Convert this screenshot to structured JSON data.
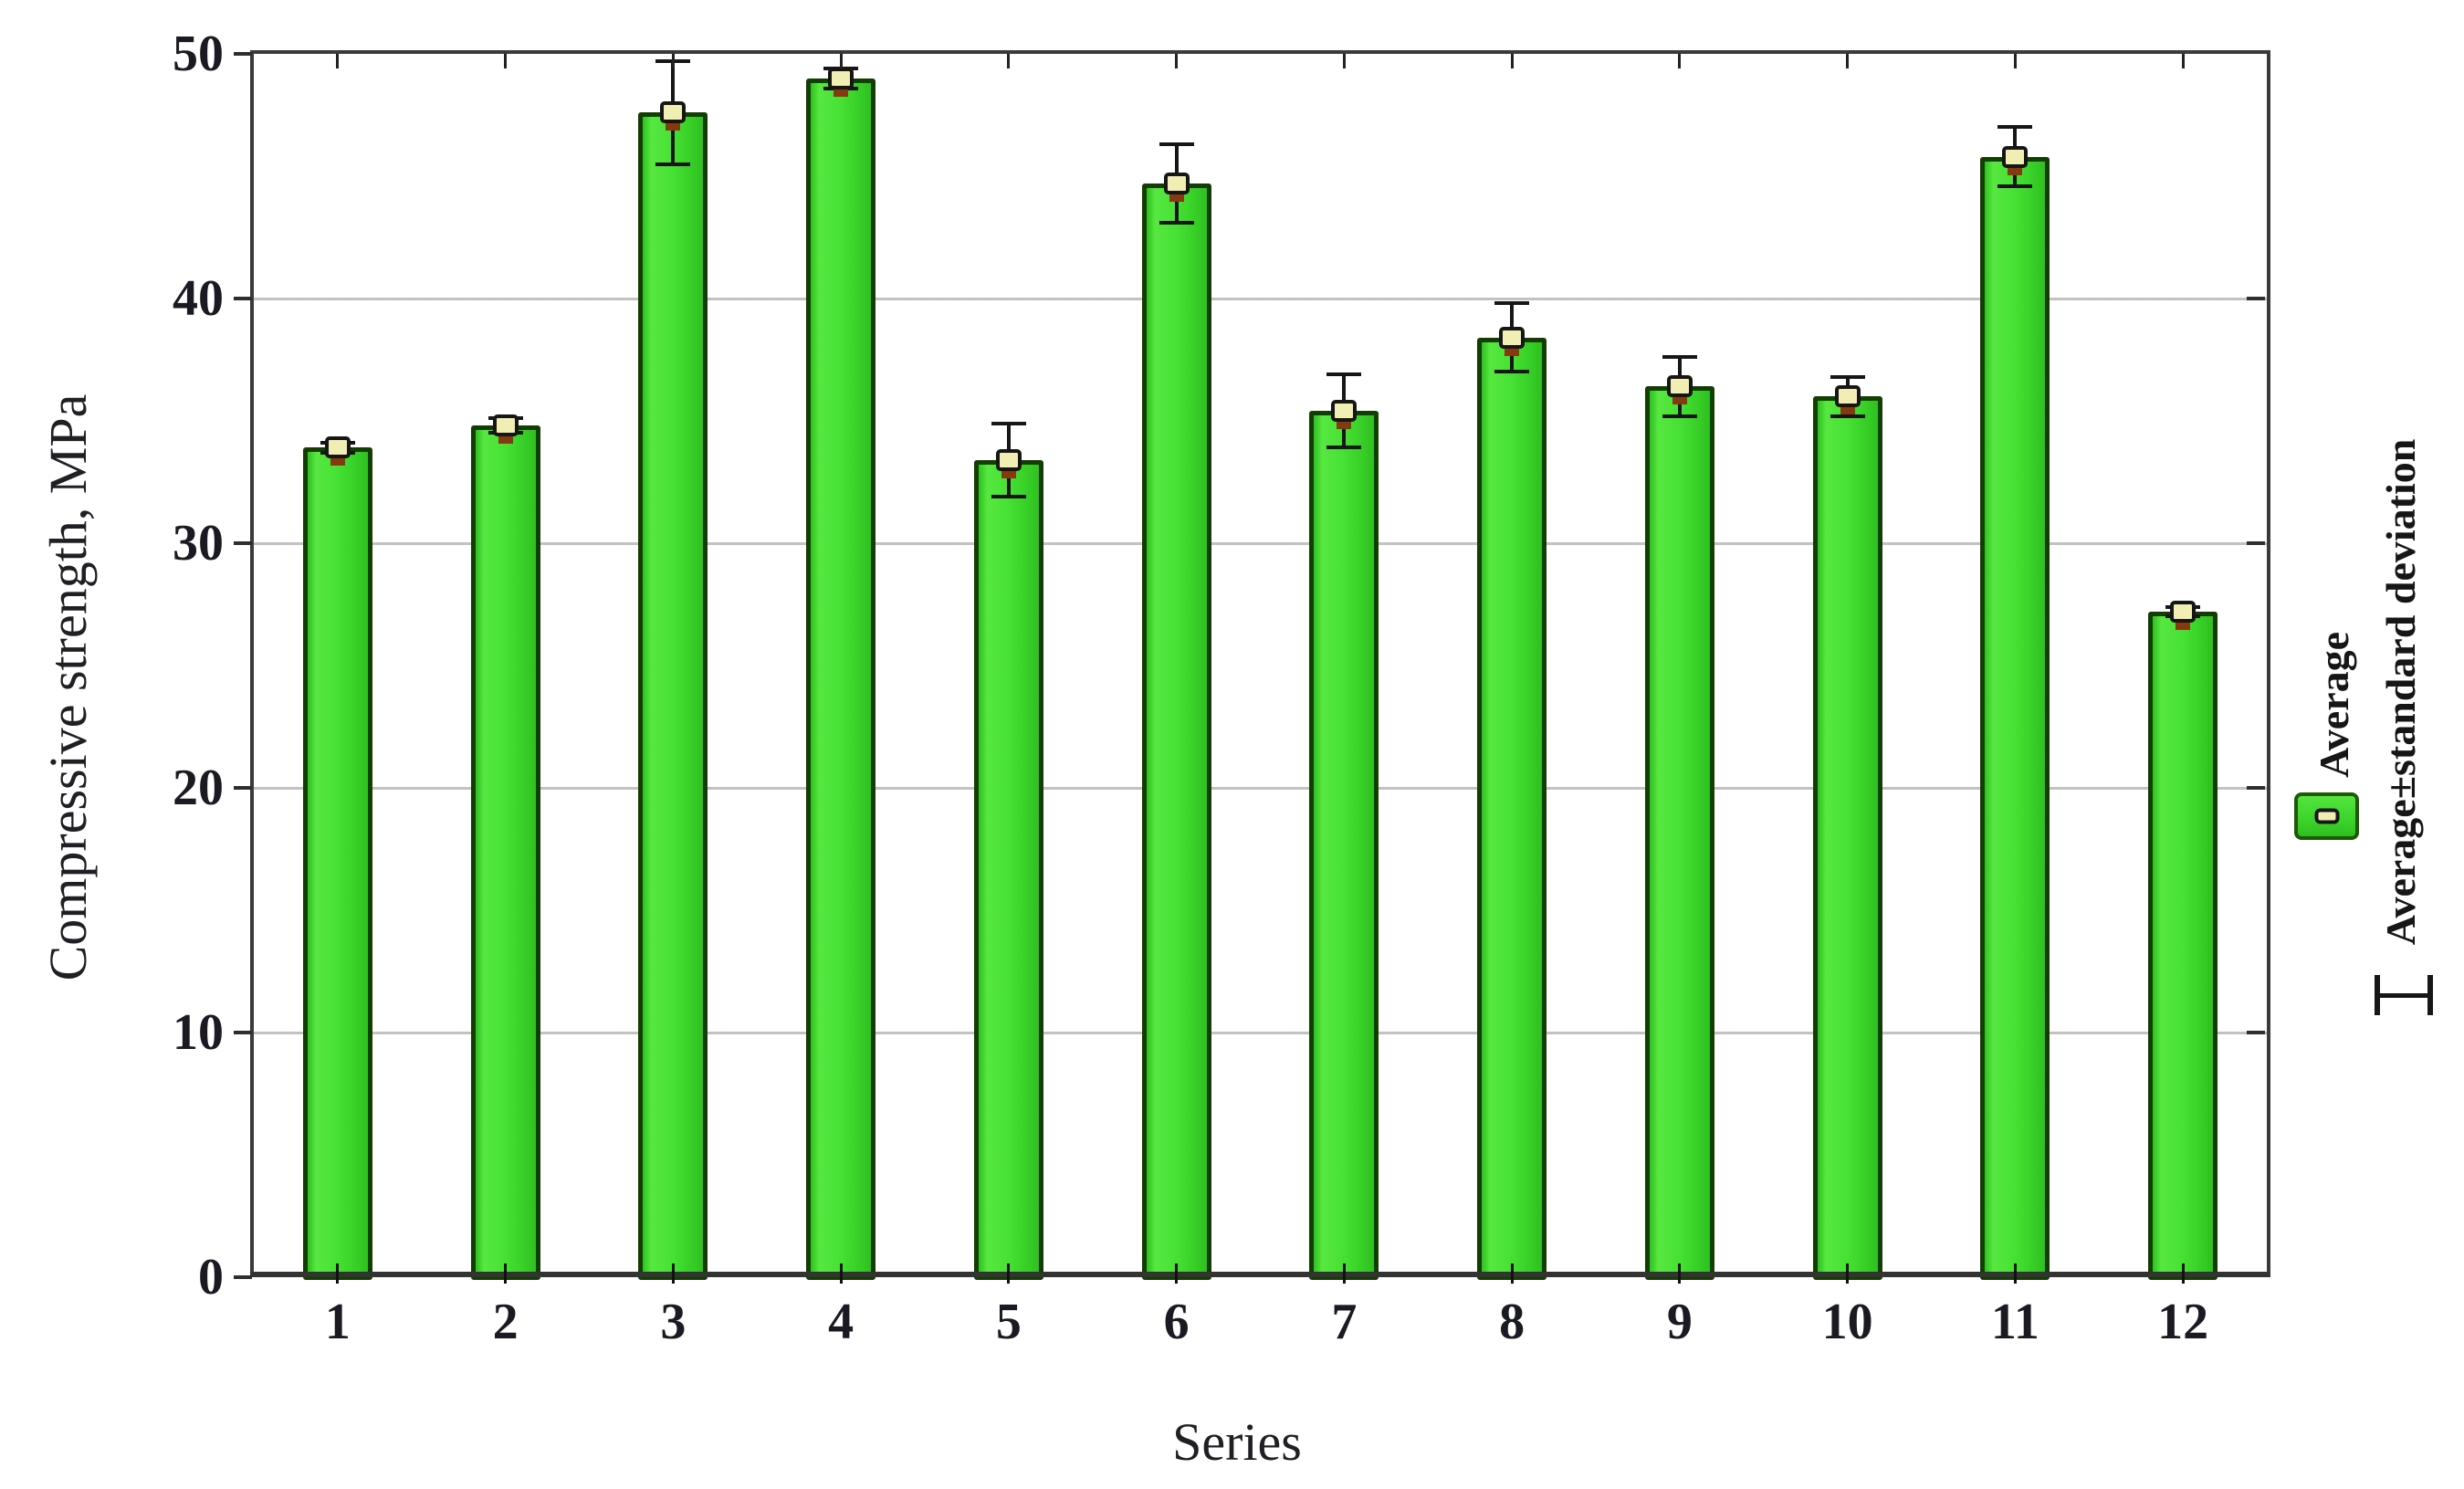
{
  "chart_data": {
    "type": "bar",
    "title": "",
    "xlabel": "Series",
    "ylabel": "Compressive strength, MPa",
    "categories": [
      "1",
      "2",
      "3",
      "4",
      "5",
      "6",
      "7",
      "8",
      "9",
      "10",
      "11",
      "12"
    ],
    "series": [
      {
        "name": "Average",
        "values": [
          33.9,
          34.8,
          47.6,
          49.0,
          33.4,
          44.7,
          35.4,
          38.4,
          36.4,
          36.0,
          45.8,
          27.2
        ]
      },
      {
        "name": "Standard deviation",
        "values": [
          0.2,
          0.3,
          2.1,
          0.4,
          1.5,
          1.6,
          1.5,
          1.4,
          1.2,
          0.8,
          1.2,
          0.2
        ]
      }
    ],
    "ylim": [
      0,
      50
    ],
    "yticks": [
      0,
      10,
      20,
      30,
      40,
      50
    ],
    "grid": "horizontal",
    "legend_position": "right",
    "legend": {
      "entries": [
        {
          "label": "Average",
          "symbol": "bar-swatch"
        },
        {
          "label": "Average±standard deviation",
          "symbol": "error-bar"
        }
      ]
    },
    "colors": {
      "bar_fill": "#3bd42a",
      "bar_border": "#133e02",
      "error_bar": "#161616",
      "marker_fill": "#f1eeb4",
      "marker_under": "#84390f",
      "gridline": "#c4c1be",
      "axis_frame": "#3a3a3a",
      "text": "#1a1a22"
    }
  }
}
